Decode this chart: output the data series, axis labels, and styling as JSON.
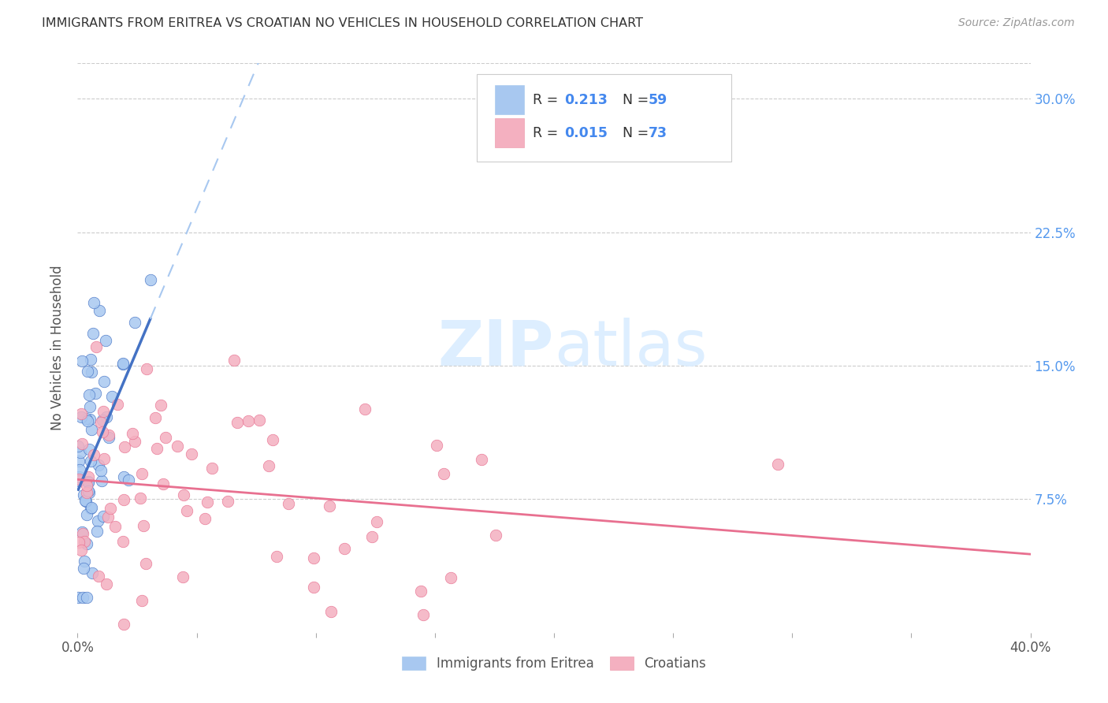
{
  "title": "IMMIGRANTS FROM ERITREA VS CROATIAN NO VEHICLES IN HOUSEHOLD CORRELATION CHART",
  "source": "Source: ZipAtlas.com",
  "ylabel": "No Vehicles in Household",
  "ytick_labels": [
    "7.5%",
    "15.0%",
    "22.5%",
    "30.0%"
  ],
  "ytick_values": [
    0.075,
    0.15,
    0.225,
    0.3
  ],
  "xlim": [
    0.0,
    0.4
  ],
  "ylim": [
    0.0,
    0.32
  ],
  "legend_r_eritrea": "0.213",
  "legend_n_eritrea": "59",
  "legend_r_croatian": "0.015",
  "legend_n_croatian": "73",
  "color_eritrea": "#a8c8f0",
  "color_croatian": "#f4b0c0",
  "color_eritrea_line": "#4472c4",
  "color_croatian_line": "#e87090",
  "color_eritrea_dash": "#a8c8f0",
  "watermark_zip": "ZIP",
  "watermark_atlas": "atlas",
  "watermark_color": "#ddeeff"
}
